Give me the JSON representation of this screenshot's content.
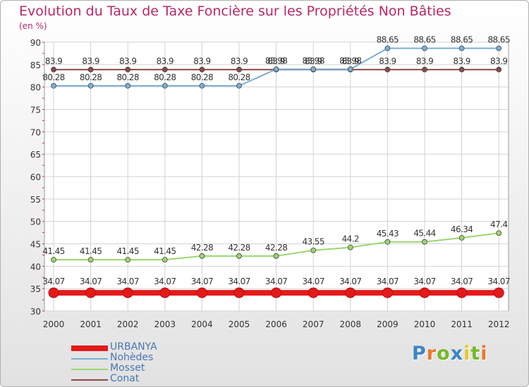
{
  "chart_data": {
    "type": "line",
    "title": "Evolution du Taux de Taxe Foncière sur les Propriétés Non Bâties",
    "subtitle": "(en %)",
    "xlabel": "",
    "ylabel": "(en %)",
    "x": [
      "2000",
      "2001",
      "2002",
      "2003",
      "2004",
      "2005",
      "2006",
      "2007",
      "2008",
      "2009",
      "2010",
      "2011",
      "2012"
    ],
    "ylim": [
      30,
      90
    ],
    "yticks": [
      30,
      35,
      40,
      45,
      50,
      55,
      60,
      65,
      70,
      75,
      80,
      85,
      90
    ],
    "grid": true,
    "legend": "bottom-left",
    "series": [
      {
        "name": "URBANYA",
        "color": "#e41a1a",
        "values": [
          34.07,
          34.07,
          34.07,
          34.07,
          34.07,
          34.07,
          34.07,
          34.07,
          34.07,
          34.07,
          34.07,
          34.07,
          34.07
        ],
        "labels": [
          "34.07",
          "34.07",
          "34.07",
          "34.07",
          "34.07",
          "34.07",
          "34.07",
          "34.07",
          "34.07",
          "34.07",
          "34.07",
          "34.07",
          "34.07"
        ]
      },
      {
        "name": "Nohèdes",
        "color": "#7aaed6",
        "values": [
          80.28,
          80.28,
          80.28,
          80.28,
          80.28,
          80.28,
          83.98,
          83.98,
          83.98,
          88.65,
          88.65,
          88.65,
          88.65
        ],
        "labels": [
          "80.28",
          "80.28",
          "80.28",
          "80.28",
          "80.28",
          "80.28",
          "83.98",
          "83.98",
          "83.98",
          "88.65",
          "88.65",
          "88.65",
          "88.65"
        ]
      },
      {
        "name": "Mosset",
        "color": "#9ad66e",
        "values": [
          41.45,
          41.45,
          41.45,
          41.45,
          42.28,
          42.28,
          42.28,
          43.55,
          44.2,
          45.43,
          45.44,
          46.34,
          47.4
        ],
        "labels": [
          "41.45",
          "41.45",
          "41.45",
          "41.45",
          "42.28",
          "42.28",
          "42.28",
          "43.55",
          "44.2",
          "45.43",
          "45.44",
          "46.34",
          "47.4"
        ]
      },
      {
        "name": "Conat",
        "color": "#8a4a4a",
        "values": [
          83.9,
          83.9,
          83.9,
          83.9,
          83.9,
          83.9,
          83.9,
          83.9,
          83.9,
          83.9,
          83.9,
          83.9,
          83.9
        ],
        "labels": [
          "83.9",
          "83.9",
          "83.9",
          "83.9",
          "83.9",
          "83.9",
          "83.9",
          "83.9",
          "83.9",
          "83.9",
          "83.9",
          "83.9",
          "83.9"
        ]
      }
    ]
  },
  "logo": {
    "letters": [
      "P",
      "r",
      "o",
      "x",
      "i",
      "t",
      "i"
    ],
    "colors": [
      "#3c86c6",
      "#e8782a",
      "#76b82a",
      "#3c86c6",
      "#e8c82a",
      "#76b82a",
      "#e8782a"
    ]
  }
}
